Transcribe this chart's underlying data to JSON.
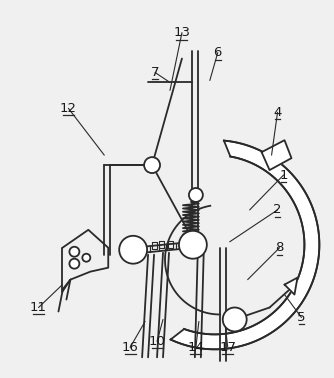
{
  "bg_color": "#f0f0f0",
  "line_color": "#2a2a2a",
  "label_color": "#1a1a1a",
  "fig_w": 3.34,
  "fig_h": 3.78,
  "dpi": 100
}
